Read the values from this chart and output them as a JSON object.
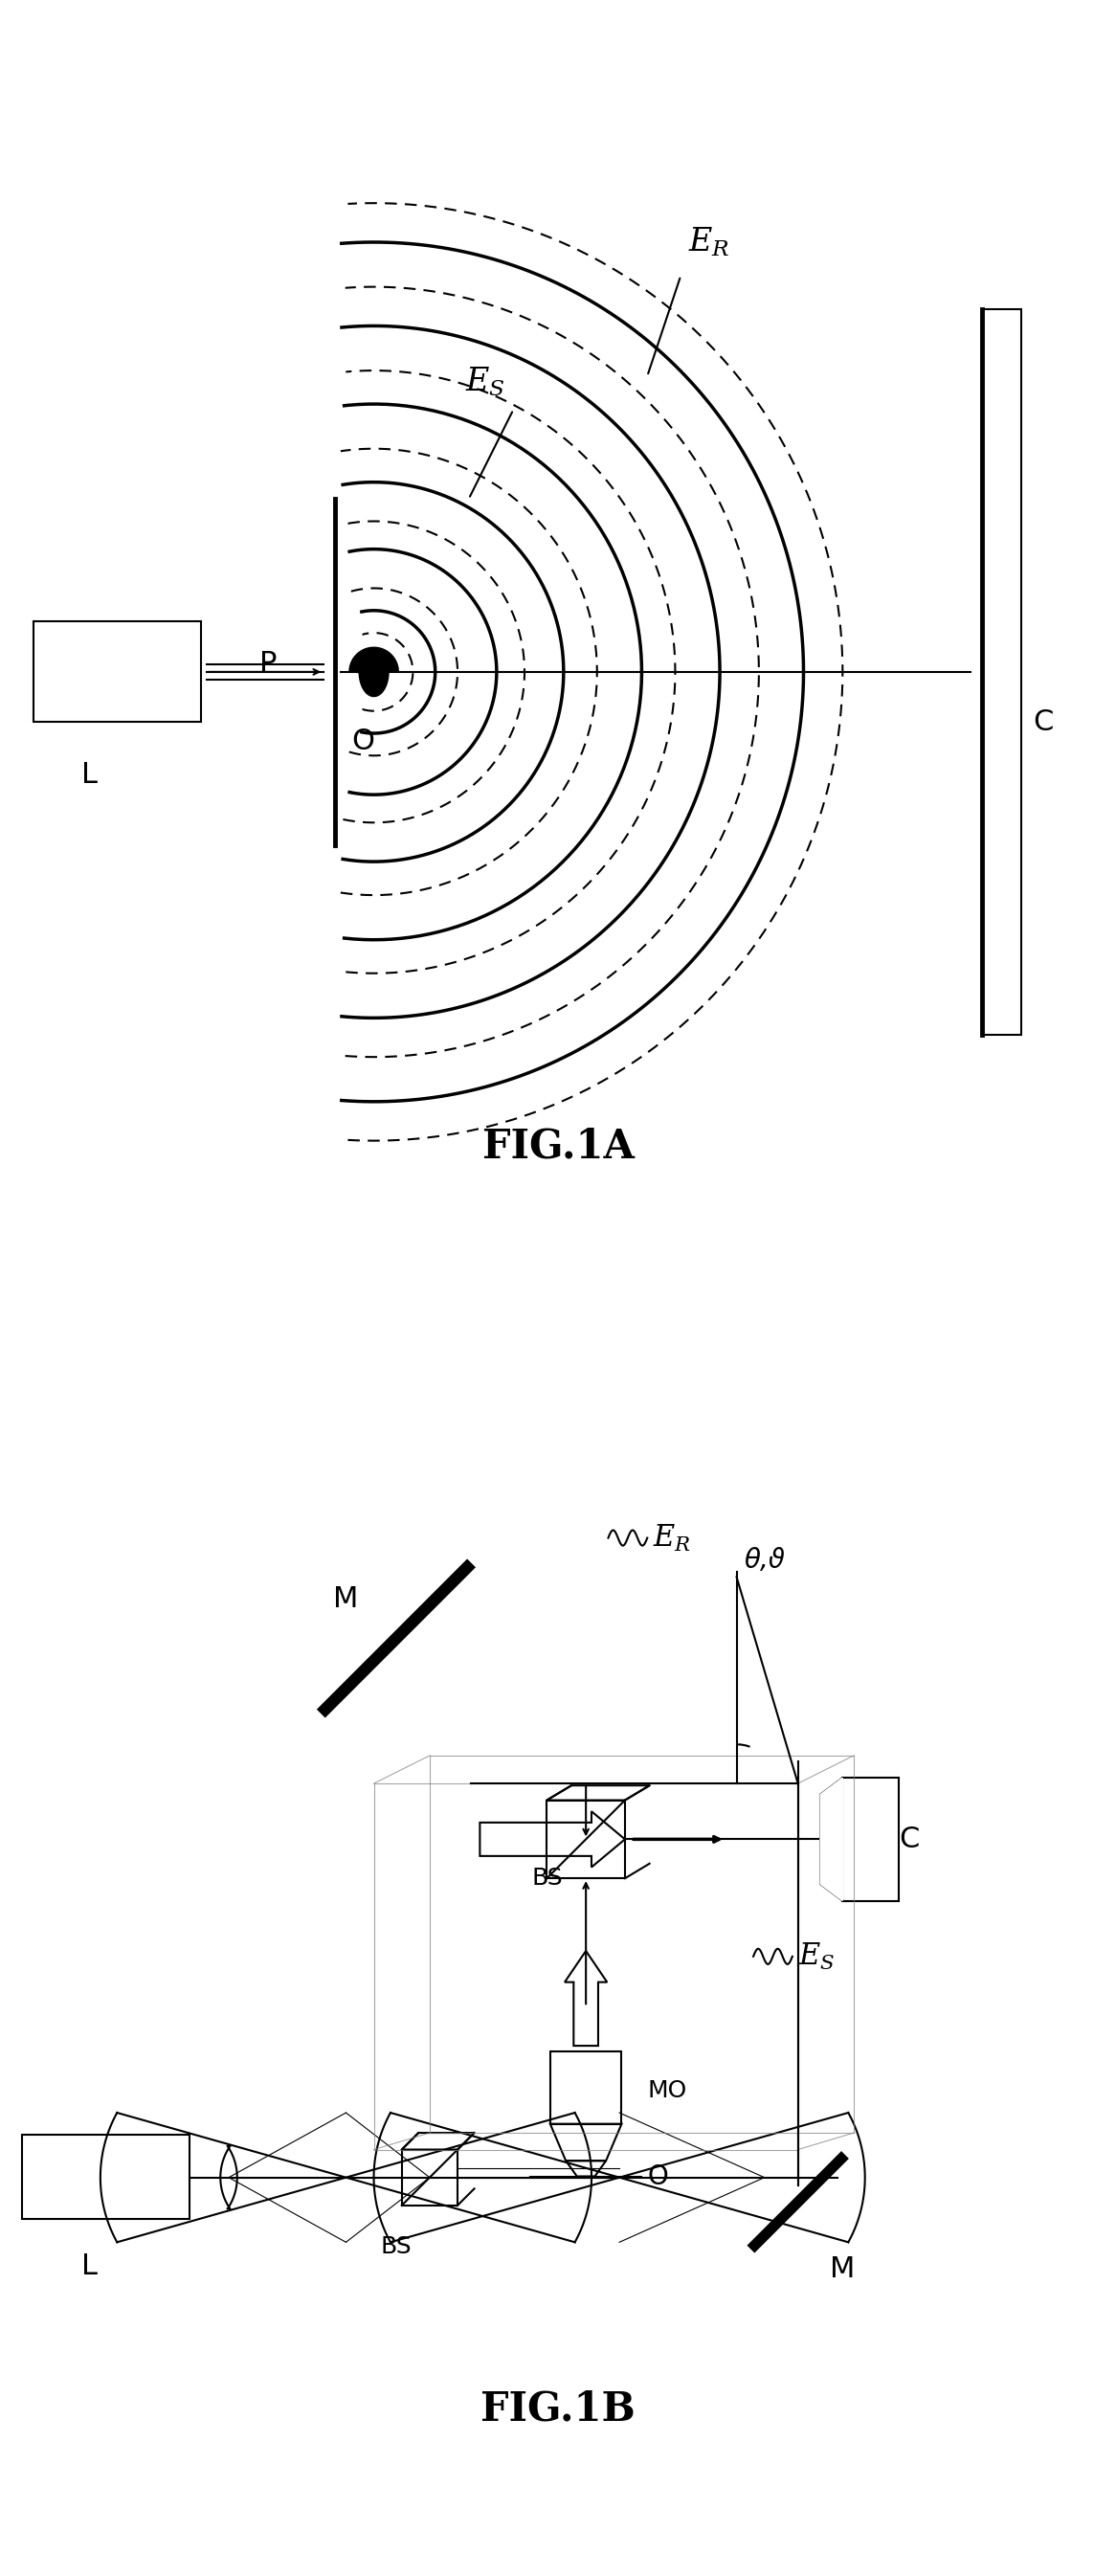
{
  "fig_width": 11.66,
  "fig_height": 26.91,
  "bg_color": "#ffffff",
  "line_color": "#000000",
  "fig1a_title": "FIG.1A",
  "fig1b_title": "FIG.1B",
  "label_L1": "L",
  "label_P": "P",
  "label_O1": "O",
  "label_C1": "C",
  "label_ES1": "E",
  "label_ES1_sub": "S",
  "label_ER1": "E",
  "label_ER1_sub": "R",
  "label_L2": "L",
  "label_M_top": "M",
  "label_M_bot": "M",
  "label_BS_mid": "BS",
  "label_BS_bot": "BS",
  "label_C2": "C",
  "label_ES2": "E",
  "label_ES2_sub": "S",
  "label_ER2": "E",
  "label_ER2_sub": "R",
  "label_MO": "MO",
  "label_O2": "O",
  "label_theta": "θ,ϑ"
}
